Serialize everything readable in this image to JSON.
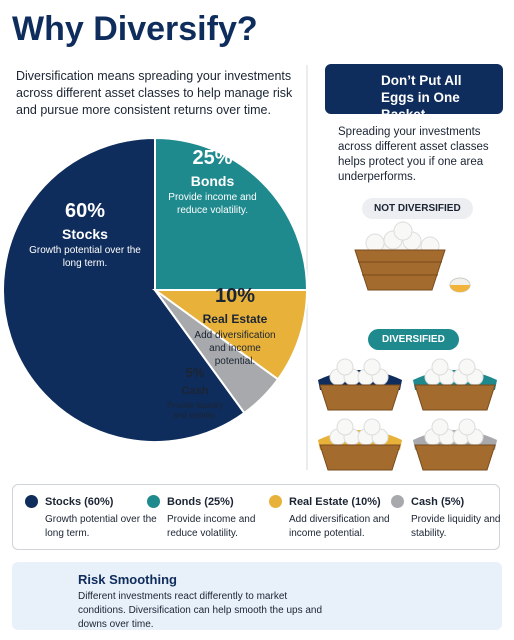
{
  "title": "Why Diversify?",
  "intro": "Diversification means spreading your investments across different asset classes to help manage risk and pursue more consistent returns over time.",
  "chart_data": {
    "type": "pie",
    "categories": [
      "Stocks",
      "Bonds",
      "Real Estate",
      "Cash"
    ],
    "values": [
      60,
      25,
      10,
      5
    ],
    "value_labels": [
      "60%",
      "25%",
      "10%",
      "5%"
    ],
    "colors": [
      "#0f2d5c",
      "#1f8a8e",
      "#e8b23a",
      "#a7a9ac"
    ],
    "descriptions": [
      "Growth potential over the long term.",
      "Provide income and reduce volatility.",
      "Add diversification and income potential.",
      "Provide liquidity and stability."
    ]
  },
  "side_panel": {
    "heading": "Don’t Put All Eggs in One Basket",
    "text": "Spreading your investments across different asset classes helps protect you if one area underperforms.",
    "not_diversified": "NOT DIVERSIFIED",
    "diversified": "DIVERSIFIED"
  },
  "legend": {
    "items": [
      "Stocks (60%)",
      "Bonds (25%)",
      "Real Estate (10%)",
      "Cash (5%)"
    ]
  },
  "risk": {
    "title": "Risk Smoothing",
    "text": "Different investments react differently to market conditions. Diversification can help smooth the ups and downs over time."
  }
}
